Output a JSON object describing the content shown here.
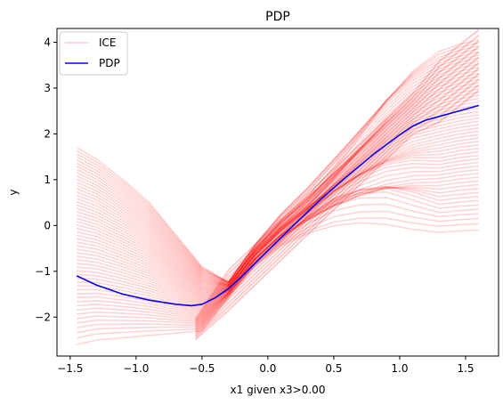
{
  "chart_data": {
    "type": "line",
    "title": "PDP",
    "xlabel": "x1 given x3>0.00",
    "ylabel": "y",
    "xlim": [
      -1.6,
      1.75
    ],
    "ylim": [
      -2.85,
      4.3
    ],
    "x_ticks": [
      -1.5,
      -1.0,
      -0.5,
      0.0,
      0.5,
      1.0,
      1.5
    ],
    "x_tick_labels": [
      "−1.5",
      "−1.0",
      "−0.5",
      "0.0",
      "0.5",
      "1.0",
      "1.5"
    ],
    "y_ticks": [
      -2,
      -1,
      0,
      1,
      2,
      3,
      4
    ],
    "y_tick_labels": [
      "−2",
      "−1",
      "0",
      "1",
      "2",
      "3",
      "4"
    ],
    "grid": false,
    "legend": {
      "position": "top-left",
      "entries": [
        "ICE",
        "PDP"
      ]
    },
    "colors": {
      "ice": "#ff0000",
      "pdp": "#0000ff"
    },
    "series": [
      {
        "name": "PDP",
        "x": [
          -1.45,
          -1.3,
          -1.1,
          -0.9,
          -0.7,
          -0.58,
          -0.5,
          -0.4,
          -0.3,
          -0.2,
          0.0,
          0.2,
          0.4,
          0.6,
          0.8,
          1.0,
          1.1,
          1.2,
          1.3,
          1.45,
          1.6
        ],
        "y": [
          -1.1,
          -1.3,
          -1.5,
          -1.63,
          -1.72,
          -1.75,
          -1.72,
          -1.58,
          -1.38,
          -1.12,
          -0.55,
          0.02,
          0.57,
          1.07,
          1.55,
          1.98,
          2.17,
          2.3,
          2.38,
          2.5,
          2.62
        ]
      },
      {
        "name": "ICE",
        "x": [
          -1.45,
          -1.3,
          -1.1,
          -0.9,
          -0.7,
          -0.5,
          -0.3,
          -0.1,
          0.1,
          0.3,
          0.5,
          0.7,
          0.9,
          1.1,
          1.3,
          1.45,
          1.6
        ],
        "y_range_low": [
          -2.6,
          -2.5,
          -2.45,
          -2.4,
          -2.35,
          -2.3,
          -1.6,
          -0.9,
          -0.5,
          -0.4,
          -0.35,
          -0.3,
          -0.25,
          -0.2,
          -0.15,
          -0.12,
          -0.1
        ],
        "y_range_high": [
          1.7,
          1.45,
          1.0,
          0.5,
          -0.2,
          -0.9,
          -1.2,
          -0.3,
          0.5,
          1.2,
          1.85,
          2.45,
          3.05,
          3.5,
          3.8,
          3.95,
          4.05
        ]
      }
    ]
  }
}
